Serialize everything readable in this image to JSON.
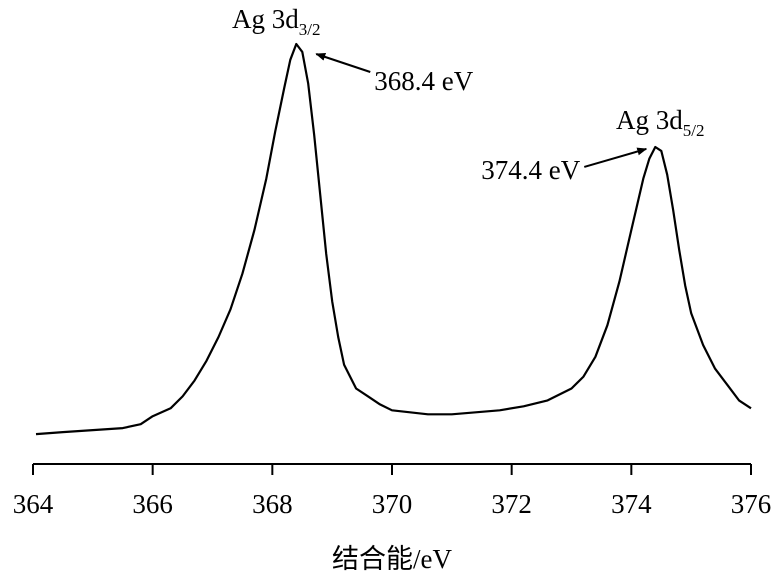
{
  "chart_data": {
    "type": "line",
    "title": "",
    "xlabel": "结合能/eV",
    "ylabel": "",
    "xlim": [
      364,
      376
    ],
    "ylim": [
      0,
      1
    ],
    "x_ticks": [
      364,
      366,
      368,
      370,
      372,
      374,
      376
    ],
    "x_tick_labels": [
      "364",
      "366",
      "368",
      "370",
      "372",
      "374",
      "376"
    ],
    "grid": false,
    "legend": "none",
    "line_color": "#000000",
    "series": [
      {
        "x": [
          364.05,
          364.5,
          365.0,
          365.5,
          365.8,
          366.0,
          366.3,
          366.5,
          366.7,
          366.9,
          367.1,
          367.3,
          367.5,
          367.7,
          367.9,
          368.05,
          368.2,
          368.3,
          368.4,
          368.5,
          368.6,
          368.7,
          368.8,
          368.9,
          369.0,
          369.1,
          369.2,
          369.4,
          369.6,
          369.8,
          370.0,
          370.3,
          370.6,
          371.0,
          371.4,
          371.8,
          372.2,
          372.6,
          373.0,
          373.2,
          373.4,
          373.6,
          373.8,
          374.0,
          374.2,
          374.3,
          374.4,
          374.5,
          374.6,
          374.7,
          374.8,
          374.9,
          375.0,
          375.2,
          375.4,
          375.6,
          375.8,
          376.0
        ],
        "y": [
          0.015,
          0.02,
          0.025,
          0.03,
          0.04,
          0.06,
          0.08,
          0.11,
          0.15,
          0.2,
          0.26,
          0.33,
          0.42,
          0.53,
          0.66,
          0.78,
          0.89,
          0.96,
          1.0,
          0.98,
          0.9,
          0.77,
          0.62,
          0.47,
          0.35,
          0.26,
          0.19,
          0.13,
          0.11,
          0.09,
          0.075,
          0.07,
          0.065,
          0.065,
          0.07,
          0.075,
          0.085,
          0.1,
          0.13,
          0.16,
          0.21,
          0.29,
          0.4,
          0.53,
          0.66,
          0.71,
          0.74,
          0.73,
          0.67,
          0.58,
          0.48,
          0.39,
          0.32,
          0.24,
          0.18,
          0.14,
          0.1,
          0.08
        ]
      }
    ],
    "peaks": [
      {
        "name": "Ag 3d",
        "sub": "3/2",
        "x": 368.4,
        "y": 1.0,
        "value_label": "368.4 eV"
      },
      {
        "name": "Ag 3d",
        "sub": "5/2",
        "x": 374.45,
        "y": 0.74,
        "value_label": "374.4 eV"
      }
    ]
  }
}
